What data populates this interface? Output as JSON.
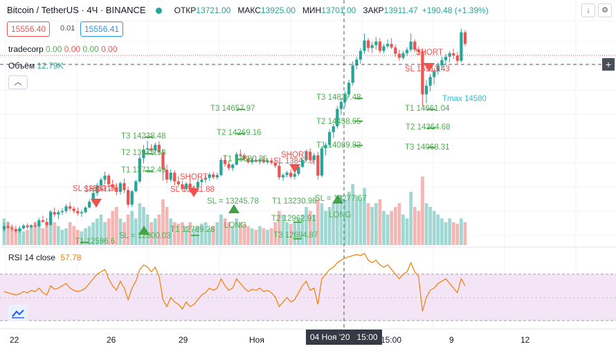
{
  "header": {
    "symbol": "Bitcoin / TetherUS · 4Ч · BINANCE",
    "open_label": "ОТКР",
    "open": "13721.00",
    "high_label": "МАКС",
    "high": "13925.00",
    "low_label": "МИН",
    "low": "13701.00",
    "close_label": "ЗАКР",
    "close": "13911.47",
    "change": "+190.48 (+1.39%)",
    "bid": "15556.40",
    "spread": "0.01",
    "ask": "15556.41"
  },
  "indicators": {
    "tradecorp_name": "tradecorp",
    "tradecorp_values": [
      "0.00",
      "0.00",
      "0.00",
      "0.00"
    ],
    "volume_name": "Объём",
    "volume_value": "12.79K",
    "rsi_name": "RSI 14 close",
    "rsi_value": "57.78"
  },
  "x_axis": {
    "ticks": [
      "22",
      "26",
      "29",
      "Ноя",
      "15:00",
      "9",
      "12"
    ],
    "crosshair_date": "04 Ноя '20",
    "crosshair_time": "15:00"
  },
  "annotations": [
    {
      "text": "SL 13563.26",
      "color": "#ef5350"
    },
    {
      "text": "SHORT",
      "color": "#ef5350"
    },
    {
      "text": "T1 12596.6",
      "color": "#4caf50"
    },
    {
      "text": "SL = 12800.03",
      "color": "#4caf50"
    },
    {
      "text": "T3 14238.48",
      "color": "#4caf50"
    },
    {
      "text": "T2 13975.58",
      "color": "#4caf50"
    },
    {
      "text": "T1 13712.49",
      "color": "#4caf50"
    },
    {
      "text": "SHORT",
      "color": "#ef5350"
    },
    {
      "text": "SL 13411.88",
      "color": "#ef5350"
    },
    {
      "text": "T1 12789.28",
      "color": "#4caf50"
    },
    {
      "text": "T3 14657.97",
      "color": "#4caf50"
    },
    {
      "text": "T2 14269.16",
      "color": "#4caf50"
    },
    {
      "text": "T1 13880.35",
      "color": "#4caf50"
    },
    {
      "text": "SL = 13245.78",
      "color": "#4caf50"
    },
    {
      "text": "LONG",
      "color": "#4caf50"
    },
    {
      "text": "SHORT",
      "color": "#ef5350"
    },
    {
      "text": "SL 13847.5",
      "color": "#ef5350"
    },
    {
      "text": "T1 13230.96",
      "color": "#4caf50"
    },
    {
      "text": "T2 12962.91",
      "color": "#4caf50"
    },
    {
      "text": "T3 12694.87",
      "color": "#4caf50"
    },
    {
      "text": "SL = 13277.67",
      "color": "#4caf50"
    },
    {
      "text": "LONG",
      "color": "#4caf50"
    },
    {
      "text": "T3 14827.48",
      "color": "#4caf50"
    },
    {
      "text": "T2 14458.65",
      "color": "#4caf50"
    },
    {
      "text": "T1 14089.82",
      "color": "#4caf50"
    },
    {
      "text": "SHORT",
      "color": "#ef5350"
    },
    {
      "text": "SL 15513.43",
      "color": "#ef5350"
    },
    {
      "text": "T1 14661.04",
      "color": "#4caf50"
    },
    {
      "text": "T2 14364.68",
      "color": "#4caf50"
    },
    {
      "text": "T3 14068.31",
      "color": "#4caf50"
    },
    {
      "text": "Tmax 14580",
      "color": "#26c6da"
    }
  ],
  "colors": {
    "up": "#26a69a",
    "down": "#ef5350",
    "rsi_line": "#f57c00",
    "rsi_band": "#f3e5f5"
  },
  "icons": {
    "tv_logo": "tradingview-logo-icon",
    "plus": "plus-icon",
    "down": "arrow-down-icon",
    "settings": "gear-icon"
  },
  "chart_data": {
    "type": "candlestick",
    "y_range": [
      12100,
      15800
    ],
    "candles": [
      [
        12320,
        12440,
        12280,
        12380
      ],
      [
        12380,
        12460,
        12330,
        12350
      ],
      [
        12350,
        12410,
        12290,
        12330
      ],
      [
        12330,
        12390,
        12260,
        12290
      ],
      [
        12290,
        12380,
        12260,
        12340
      ],
      [
        12340,
        12420,
        12320,
        12390
      ],
      [
        12390,
        12430,
        12330,
        12360
      ],
      [
        12360,
        12410,
        12340,
        12395
      ],
      [
        12395,
        12450,
        12350,
        12380
      ],
      [
        12380,
        12520,
        12360,
        12480
      ],
      [
        12480,
        12560,
        12440,
        12450
      ],
      [
        12450,
        12520,
        12360,
        12400
      ],
      [
        12400,
        12650,
        12380,
        12620
      ],
      [
        12620,
        12700,
        12540,
        12580
      ],
      [
        12580,
        12660,
        12500,
        12620
      ],
      [
        12620,
        12690,
        12570,
        12640
      ],
      [
        12640,
        12760,
        12600,
        12720
      ],
      [
        12720,
        12790,
        12640,
        12680
      ],
      [
        12680,
        12720,
        12600,
        12640
      ],
      [
        12640,
        12700,
        12560,
        12600
      ],
      [
        12600,
        12660,
        12540,
        12620
      ],
      [
        12620,
        12720,
        12600,
        12700
      ],
      [
        12700,
        12840,
        12680,
        12800
      ],
      [
        12800,
        13000,
        12770,
        12950
      ],
      [
        12950,
        13120,
        12900,
        13080
      ],
      [
        13080,
        13220,
        13020,
        13180
      ],
      [
        13180,
        13320,
        13100,
        13250
      ],
      [
        13250,
        13280,
        13050,
        13100
      ],
      [
        13100,
        13180,
        12980,
        13050
      ],
      [
        13050,
        13120,
        12910,
        12970
      ],
      [
        12970,
        13150,
        12920,
        13120
      ],
      [
        13120,
        13200,
        12950,
        13000
      ],
      [
        13000,
        13060,
        12700,
        12750
      ],
      [
        12750,
        13000,
        12710,
        12980
      ],
      [
        12980,
        13180,
        12960,
        13150
      ],
      [
        13150,
        13600,
        13120,
        13550
      ],
      [
        13550,
        13780,
        13460,
        13700
      ],
      [
        13700,
        13850,
        13640,
        13720
      ],
      [
        13720,
        13790,
        13660,
        13680
      ],
      [
        13680,
        13820,
        13600,
        13780
      ],
      [
        13780,
        13840,
        13620,
        13650
      ],
      [
        13650,
        13700,
        13160,
        13350
      ],
      [
        13350,
        13440,
        13120,
        13180
      ],
      [
        13180,
        13360,
        13140,
        13300
      ],
      [
        13300,
        13340,
        13080,
        13150
      ],
      [
        13150,
        13240,
        13050,
        13100
      ],
      [
        13100,
        13160,
        12980,
        13020
      ],
      [
        13020,
        13140,
        12990,
        13110
      ],
      [
        13110,
        13200,
        12960,
        13000
      ],
      [
        13000,
        13080,
        12940,
        13040
      ],
      [
        13040,
        13180,
        13000,
        13140
      ],
      [
        13140,
        13220,
        13080,
        13180
      ],
      [
        13180,
        13260,
        13120,
        13210
      ],
      [
        13210,
        13300,
        13160,
        13270
      ],
      [
        13270,
        13320,
        13190,
        13220
      ],
      [
        13220,
        13300,
        13180,
        13260
      ],
      [
        13260,
        13560,
        13240,
        13520
      ],
      [
        13520,
        13610,
        13400,
        13450
      ],
      [
        13450,
        13500,
        13340,
        13380
      ],
      [
        13380,
        13460,
        13330,
        13440
      ],
      [
        13440,
        13660,
        13420,
        13620
      ],
      [
        13620,
        13700,
        13560,
        13600
      ],
      [
        13600,
        13640,
        13500,
        13540
      ],
      [
        13540,
        13590,
        13460,
        13480
      ],
      [
        13480,
        13560,
        13440,
        13520
      ],
      [
        13520,
        13580,
        13470,
        13490
      ],
      [
        13490,
        13560,
        13440,
        13530
      ],
      [
        13530,
        13590,
        13460,
        13480
      ],
      [
        13480,
        13540,
        13450,
        13510
      ],
      [
        13510,
        13560,
        13440,
        13470
      ],
      [
        13470,
        13520,
        13380,
        13420
      ],
      [
        13420,
        13480,
        13180,
        13220
      ],
      [
        13220,
        13290,
        13160,
        13260
      ],
      [
        13260,
        13330,
        13220,
        13300
      ],
      [
        13300,
        13360,
        13200,
        13230
      ],
      [
        13230,
        13320,
        13180,
        13280
      ],
      [
        13280,
        13440,
        13250,
        13400
      ],
      [
        13400,
        13560,
        13380,
        13520
      ],
      [
        13520,
        13700,
        13490,
        13660
      ],
      [
        13660,
        13720,
        13480,
        13520
      ],
      [
        13520,
        13640,
        13440,
        13600
      ],
      [
        13600,
        13660,
        13180,
        13250
      ],
      [
        13250,
        13760,
        13220,
        13720
      ],
      [
        13720,
        13820,
        13600,
        13780
      ],
      [
        13780,
        14050,
        13760,
        14000
      ],
      [
        14000,
        14140,
        13900,
        14100
      ],
      [
        14100,
        14450,
        14060,
        14400
      ],
      [
        14400,
        14580,
        14300,
        14520
      ],
      [
        14520,
        14700,
        14440,
        14650
      ],
      [
        14650,
        14900,
        14600,
        14850
      ],
      [
        14850,
        15220,
        14800,
        15150
      ],
      [
        15150,
        15300,
        15080,
        15250
      ],
      [
        15250,
        15450,
        15180,
        15400
      ],
      [
        15400,
        15700,
        15350,
        15580
      ],
      [
        15580,
        15620,
        15380,
        15450
      ],
      [
        15450,
        15560,
        15360,
        15500
      ],
      [
        15500,
        15640,
        15420,
        15560
      ],
      [
        15560,
        15620,
        15360,
        15400
      ],
      [
        15400,
        15520,
        15360,
        15480
      ],
      [
        15480,
        15600,
        15440,
        15520
      ],
      [
        15520,
        15620,
        15430,
        15460
      ],
      [
        15460,
        15510,
        15300,
        15350
      ],
      [
        15350,
        15420,
        15230,
        15280
      ],
      [
        15280,
        15400,
        15250,
        15360
      ],
      [
        15360,
        15460,
        15310,
        15420
      ],
      [
        15420,
        15700,
        15380,
        15560
      ],
      [
        15560,
        15600,
        15380,
        15420
      ],
      [
        15420,
        15480,
        15320,
        15380
      ],
      [
        15380,
        15440,
        14450,
        14650
      ],
      [
        14650,
        14900,
        14500,
        14800
      ],
      [
        14800,
        15000,
        14700,
        14950
      ],
      [
        14950,
        15100,
        14820,
        15050
      ],
      [
        15050,
        15200,
        14990,
        15150
      ],
      [
        15150,
        15300,
        15080,
        15240
      ],
      [
        15240,
        15350,
        15150,
        15300
      ],
      [
        15300,
        15400,
        15200,
        15360
      ],
      [
        15360,
        15440,
        15260,
        15320
      ],
      [
        15320,
        15380,
        15180,
        15230
      ],
      [
        15230,
        15780,
        15200,
        15720
      ],
      [
        15720,
        15760,
        15480,
        15520
      ]
    ],
    "volumes": [
      0.35,
      0.3,
      0.25,
      0.2,
      0.22,
      0.18,
      0.2,
      0.25,
      0.3,
      0.28,
      0.22,
      0.3,
      0.45,
      0.3,
      0.25,
      0.2,
      0.22,
      0.3,
      0.25,
      0.2,
      0.18,
      0.22,
      0.25,
      0.3,
      0.35,
      0.4,
      0.3,
      0.35,
      0.45,
      0.5,
      0.35,
      0.3,
      0.4,
      0.45,
      0.35,
      0.55,
      0.5,
      0.4,
      0.3,
      0.35,
      0.4,
      0.6,
      0.5,
      0.35,
      0.3,
      0.28,
      0.3,
      0.25,
      0.3,
      0.22,
      0.25,
      0.28,
      0.3,
      0.22,
      0.25,
      0.3,
      0.4,
      0.35,
      0.3,
      0.25,
      0.35,
      0.3,
      0.28,
      0.25,
      0.22,
      0.2,
      0.25,
      0.22,
      0.2,
      0.22,
      0.3,
      0.45,
      0.4,
      0.3,
      0.28,
      0.3,
      0.35,
      0.4,
      0.5,
      0.45,
      0.4,
      0.6,
      0.55,
      0.45,
      0.5,
      0.55,
      0.6,
      0.65,
      0.6,
      0.7,
      0.8,
      0.65,
      0.6,
      0.75,
      0.55,
      0.5,
      0.55,
      0.6,
      0.45,
      0.4,
      0.45,
      0.5,
      0.55,
      0.4,
      0.35,
      0.7,
      0.5,
      0.45,
      0.9,
      0.55,
      0.5,
      0.45,
      0.4,
      0.35,
      0.3,
      0.35,
      0.3,
      0.28,
      0.35,
      0.3
    ],
    "rsi": [
      55,
      54,
      53,
      52,
      53,
      55,
      54,
      56,
      55,
      58,
      54,
      52,
      60,
      57,
      58,
      60,
      62,
      58,
      56,
      55,
      56,
      58,
      62,
      66,
      70,
      72,
      74,
      66,
      60,
      56,
      64,
      58,
      48,
      58,
      64,
      74,
      78,
      76,
      72,
      76,
      68,
      48,
      42,
      50,
      46,
      44,
      40,
      46,
      42,
      44,
      48,
      52,
      54,
      58,
      56,
      58,
      66,
      60,
      56,
      58,
      66,
      62,
      58,
      55,
      57,
      56,
      58,
      55,
      56,
      54,
      50,
      42,
      46,
      50,
      46,
      48,
      54,
      60,
      64,
      56,
      58,
      44,
      66,
      70,
      74,
      76,
      80,
      82,
      84,
      85,
      86,
      87,
      86,
      88,
      82,
      80,
      82,
      78,
      76,
      78,
      74,
      70,
      66,
      70,
      72,
      80,
      72,
      68,
      38,
      50,
      56,
      58,
      62,
      64,
      66,
      62,
      58,
      54,
      66,
      60
    ],
    "rsi_levels": [
      70,
      30
    ]
  }
}
